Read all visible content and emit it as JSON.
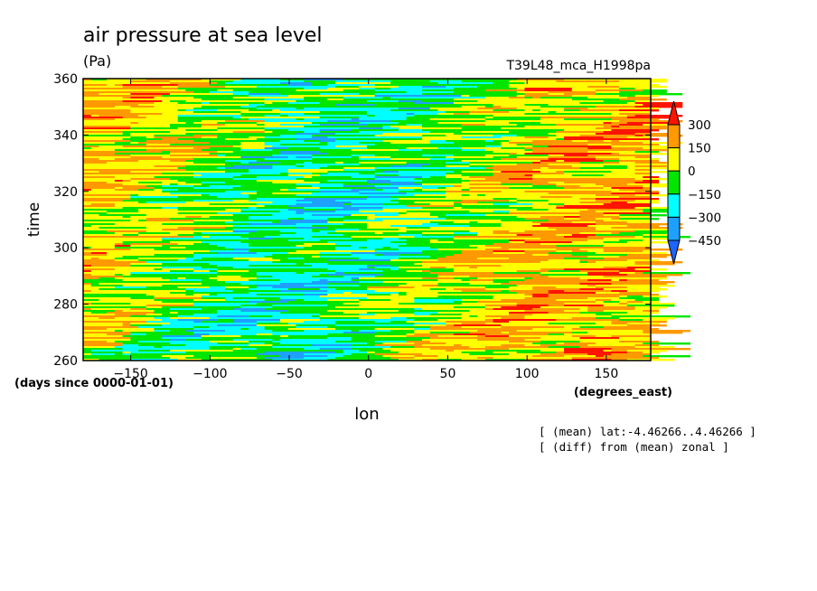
{
  "chart_data": {
    "type": "heatmap",
    "title": "air pressure at sea level",
    "units": "(Pa)",
    "run_name": "T39L48_mca_H1998pa",
    "xlabel": "lon",
    "x_units": "(degrees_east)",
    "ylabel": "time",
    "y_units": "(days since 0000-01-01)",
    "xlim": [
      -180,
      178
    ],
    "ylim": [
      260,
      360
    ],
    "x_ticks": [
      -150,
      -100,
      -50,
      0,
      50,
      100,
      150
    ],
    "y_ticks": [
      260,
      280,
      300,
      320,
      340,
      360
    ],
    "notes": [
      "[ (mean) lat:-4.46266..4.46266 ]",
      "[ (diff) from (mean) zonal ]"
    ],
    "colorbar": {
      "levels": [
        -450,
        -300,
        -150,
        0,
        150,
        300
      ],
      "labels": [
        "300",
        "150",
        "0",
        "-150",
        "-300",
        "-450"
      ],
      "colors": [
        "#1e64ff",
        "#1ea0ff",
        "#00ffff",
        "#00e600",
        "#ffff00",
        "#ff9900",
        "#ff1400"
      ]
    },
    "grid": false,
    "legend_position": "right"
  }
}
